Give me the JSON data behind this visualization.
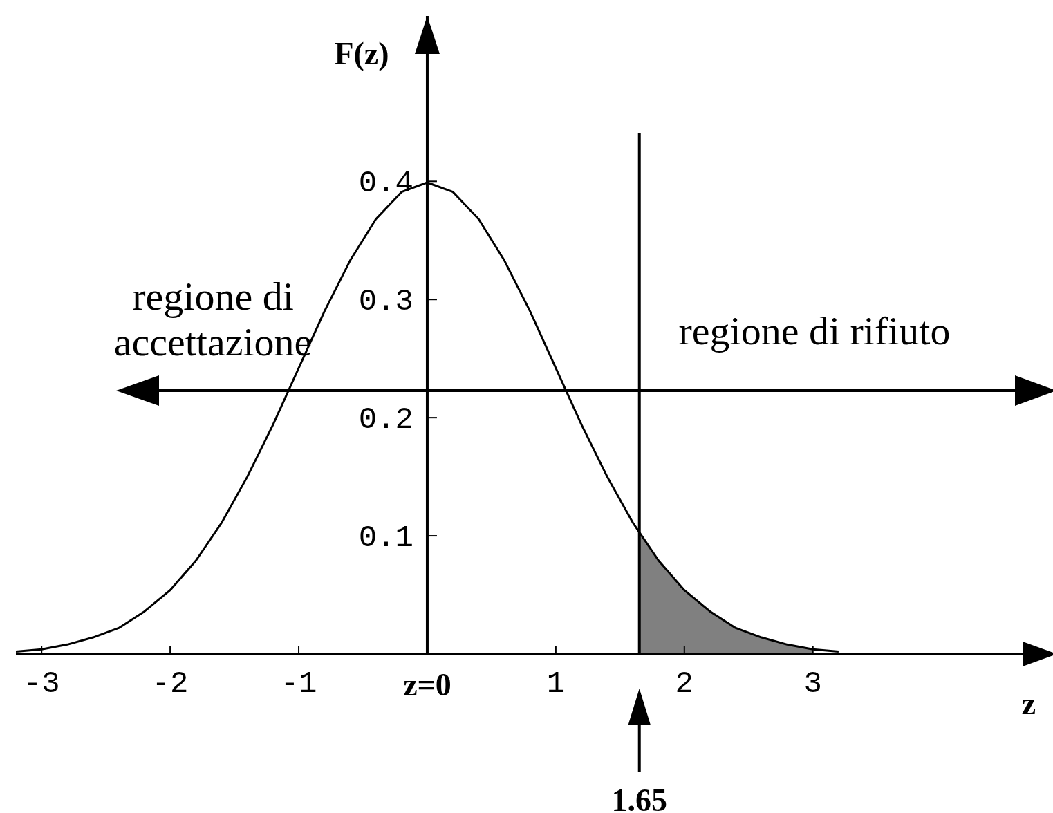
{
  "chart_data": {
    "type": "line",
    "xlabel": "z",
    "ylabel": "F(z)",
    "annotations": [
      "regione di accettazione",
      "regione di rifiuto"
    ],
    "xlim": [
      -3.2,
      4.9
    ],
    "ylim": [
      0,
      0.54
    ],
    "xticks": [
      -3,
      -2,
      -1,
      {
        "value": 0,
        "label": "z=0"
      },
      1,
      2,
      3
    ],
    "yticks": [
      0.1,
      0.2,
      0.3,
      0.4
    ],
    "marker": "none",
    "line_style": "solid",
    "ref_lines": [
      {
        "axis": "x",
        "value": 1.65,
        "label": "1.65",
        "color": "#000000"
      }
    ],
    "series": [
      {
        "color": "#000000",
        "x": [
          -3.2,
          -3,
          -2.8,
          -2.6,
          -2.4,
          -2.2,
          -2,
          -1.8,
          -1.6,
          -1.4,
          -1.2,
          -1,
          -0.8,
          -0.6,
          -0.4,
          -0.2,
          0,
          0.2,
          0.4,
          0.6,
          0.8,
          1,
          1.2,
          1.4,
          1.6,
          1.8,
          2,
          2.2,
          2.4,
          2.6,
          2.8,
          3,
          3.2
        ],
        "values": [
          0.002,
          0.004,
          0.008,
          0.014,
          0.022,
          0.036,
          0.054,
          0.079,
          0.111,
          0.15,
          0.194,
          0.242,
          0.29,
          0.333,
          0.368,
          0.391,
          0.399,
          0.391,
          0.368,
          0.333,
          0.29,
          0.242,
          0.194,
          0.15,
          0.111,
          0.079,
          0.054,
          0.036,
          0.022,
          0.014,
          0.008,
          0.004,
          0.002
        ]
      },
      {
        "type": "area",
        "color": "#808080",
        "x": [
          1.65,
          1.8,
          2,
          2.2,
          2.4,
          2.6,
          2.8,
          3
        ],
        "values": [
          0.102,
          0.079,
          0.054,
          0.036,
          0.022,
          0.014,
          0.008,
          0.004
        ]
      }
    ]
  }
}
